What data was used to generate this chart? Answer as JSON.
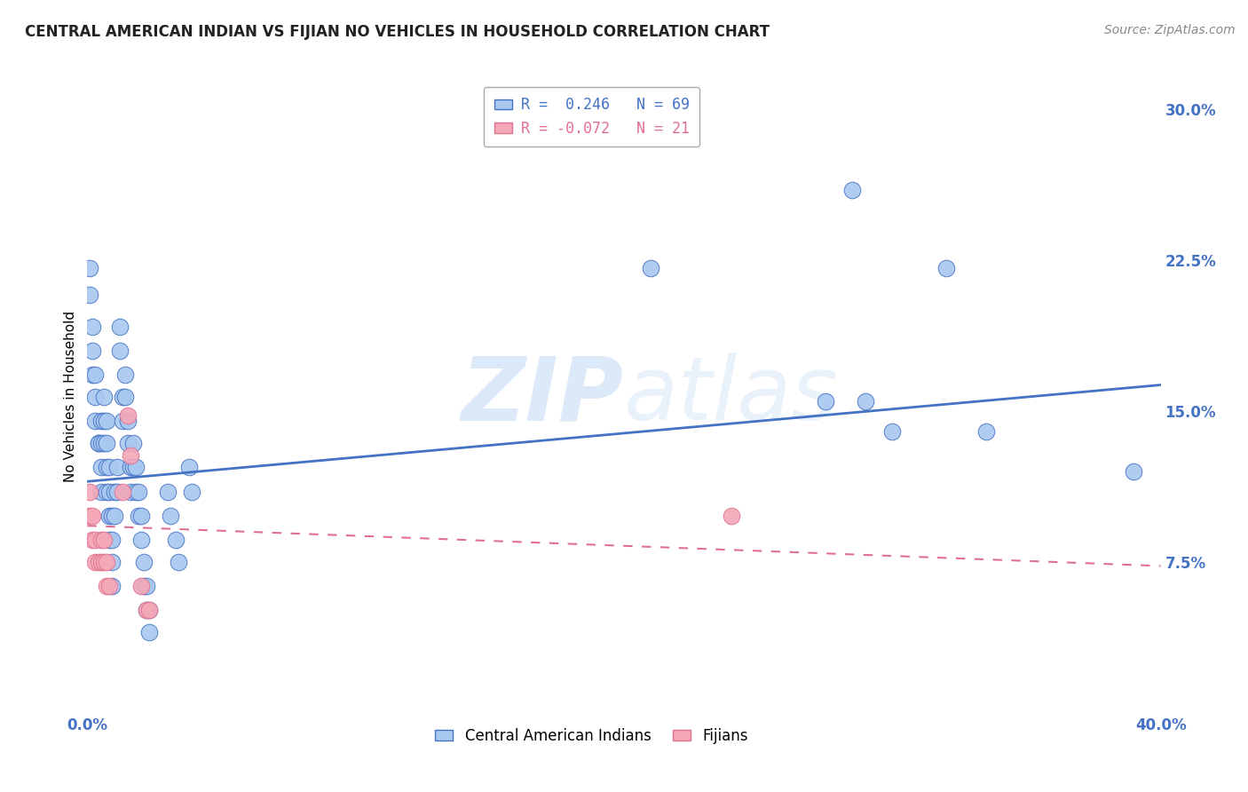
{
  "title": "CENTRAL AMERICAN INDIAN VS FIJIAN NO VEHICLES IN HOUSEHOLD CORRELATION CHART",
  "source": "Source: ZipAtlas.com",
  "ylabel": "No Vehicles in Household",
  "x_min": 0.0,
  "x_max": 0.4,
  "y_min": 0.0,
  "y_max": 0.315,
  "yticks": [
    0.075,
    0.15,
    0.225,
    0.3
  ],
  "ytick_labels": [
    "7.5%",
    "15.0%",
    "22.5%",
    "30.0%"
  ],
  "watermark": "ZIPatlas",
  "legend_blue_label": "R =  0.246   N = 69",
  "legend_pink_label": "R = -0.072   N = 21",
  "blue_color": "#A8C8F0",
  "pink_color": "#F4A8B8",
  "line_blue": "#4472C4",
  "line_pink": "#F4A8B8",
  "blue_scatter": [
    [
      0.001,
      0.221
    ],
    [
      0.001,
      0.208
    ],
    [
      0.002,
      0.192
    ],
    [
      0.002,
      0.18
    ],
    [
      0.002,
      0.168
    ],
    [
      0.003,
      0.168
    ],
    [
      0.003,
      0.157
    ],
    [
      0.003,
      0.145
    ],
    [
      0.004,
      0.134
    ],
    [
      0.004,
      0.134
    ],
    [
      0.005,
      0.145
    ],
    [
      0.005,
      0.134
    ],
    [
      0.005,
      0.122
    ],
    [
      0.005,
      0.11
    ],
    [
      0.006,
      0.157
    ],
    [
      0.006,
      0.145
    ],
    [
      0.006,
      0.134
    ],
    [
      0.007,
      0.145
    ],
    [
      0.007,
      0.134
    ],
    [
      0.007,
      0.122
    ],
    [
      0.007,
      0.11
    ],
    [
      0.008,
      0.122
    ],
    [
      0.008,
      0.11
    ],
    [
      0.008,
      0.098
    ],
    [
      0.008,
      0.086
    ],
    [
      0.009,
      0.098
    ],
    [
      0.009,
      0.086
    ],
    [
      0.009,
      0.075
    ],
    [
      0.009,
      0.063
    ],
    [
      0.01,
      0.11
    ],
    [
      0.01,
      0.098
    ],
    [
      0.011,
      0.122
    ],
    [
      0.011,
      0.11
    ],
    [
      0.012,
      0.192
    ],
    [
      0.012,
      0.18
    ],
    [
      0.013,
      0.157
    ],
    [
      0.013,
      0.145
    ],
    [
      0.014,
      0.168
    ],
    [
      0.014,
      0.157
    ],
    [
      0.015,
      0.145
    ],
    [
      0.015,
      0.134
    ],
    [
      0.016,
      0.122
    ],
    [
      0.016,
      0.11
    ],
    [
      0.017,
      0.134
    ],
    [
      0.017,
      0.122
    ],
    [
      0.018,
      0.122
    ],
    [
      0.018,
      0.11
    ],
    [
      0.019,
      0.11
    ],
    [
      0.019,
      0.098
    ],
    [
      0.02,
      0.098
    ],
    [
      0.02,
      0.086
    ],
    [
      0.021,
      0.075
    ],
    [
      0.021,
      0.063
    ],
    [
      0.022,
      0.063
    ],
    [
      0.022,
      0.051
    ],
    [
      0.023,
      0.051
    ],
    [
      0.023,
      0.04
    ],
    [
      0.03,
      0.11
    ],
    [
      0.031,
      0.098
    ],
    [
      0.033,
      0.086
    ],
    [
      0.034,
      0.075
    ],
    [
      0.038,
      0.122
    ],
    [
      0.039,
      0.11
    ],
    [
      0.21,
      0.221
    ],
    [
      0.275,
      0.155
    ],
    [
      0.285,
      0.26
    ],
    [
      0.29,
      0.155
    ],
    [
      0.3,
      0.14
    ],
    [
      0.32,
      0.221
    ],
    [
      0.335,
      0.14
    ],
    [
      0.39,
      0.12
    ]
  ],
  "pink_scatter": [
    [
      0.001,
      0.11
    ],
    [
      0.001,
      0.098
    ],
    [
      0.002,
      0.098
    ],
    [
      0.002,
      0.086
    ],
    [
      0.003,
      0.086
    ],
    [
      0.003,
      0.075
    ],
    [
      0.004,
      0.075
    ],
    [
      0.005,
      0.086
    ],
    [
      0.005,
      0.075
    ],
    [
      0.006,
      0.086
    ],
    [
      0.006,
      0.075
    ],
    [
      0.007,
      0.075
    ],
    [
      0.007,
      0.063
    ],
    [
      0.008,
      0.063
    ],
    [
      0.013,
      0.11
    ],
    [
      0.015,
      0.148
    ],
    [
      0.016,
      0.128
    ],
    [
      0.02,
      0.063
    ],
    [
      0.022,
      0.051
    ],
    [
      0.023,
      0.051
    ],
    [
      0.24,
      0.098
    ]
  ],
  "blue_trend": [
    0.0,
    0.4,
    0.115,
    0.163
  ],
  "pink_trend": [
    0.0,
    0.4,
    0.093,
    0.073
  ],
  "background_color": "#FFFFFF",
  "grid_color": "#CCCCCC",
  "tick_color": "#4472C4",
  "title_color": "#222222",
  "title_fontsize": 12,
  "source_fontsize": 10,
  "axis_label_fontsize": 11,
  "tick_fontsize": 12,
  "legend_fontsize": 12
}
